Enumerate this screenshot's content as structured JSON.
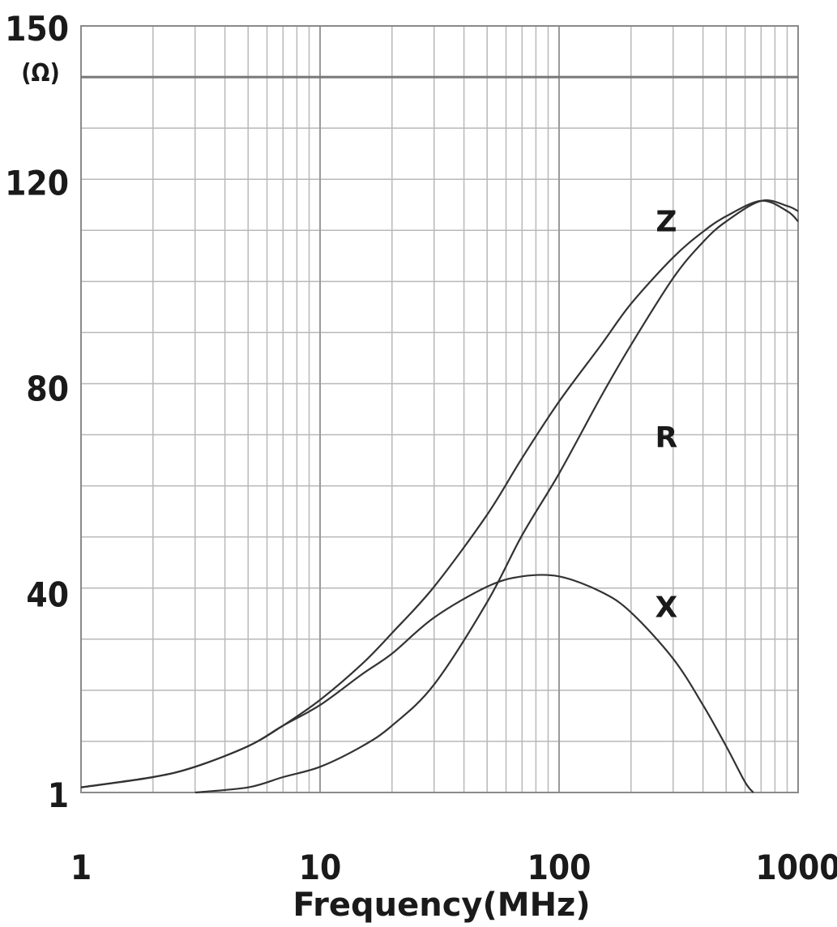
{
  "chart_data": {
    "type": "line",
    "xlabel": "Frequency(MHz)",
    "ylabel": "(Ω)",
    "xscale": "log",
    "xlim": [
      1,
      1000
    ],
    "ylim": [
      1,
      150
    ],
    "grid": true,
    "legend": "none",
    "x_ticks": [
      "1",
      "10",
      "100",
      "1000"
    ],
    "y_ticks": [
      "1",
      "40",
      "80",
      "120",
      "150"
    ],
    "line_color": "#333333",
    "grid_color": "#b8b8b8",
    "series": [
      {
        "name": "Z",
        "x": [
          1,
          2,
          3,
          5,
          7,
          10,
          15,
          20,
          30,
          50,
          70,
          100,
          150,
          200,
          300,
          400,
          500,
          700,
          900,
          1000
        ],
        "y": [
          2,
          4,
          6,
          10,
          14,
          19,
          26,
          32,
          41,
          55,
          66,
          77,
          88,
          96,
          105,
          110,
          113,
          116,
          114,
          112
        ]
      },
      {
        "name": "R",
        "x": [
          3,
          5,
          7,
          10,
          15,
          20,
          30,
          50,
          70,
          100,
          150,
          200,
          300,
          400,
          500,
          700,
          900,
          1000
        ],
        "y": [
          1,
          2,
          4,
          6,
          10,
          14,
          22,
          38,
          51,
          63,
          78,
          88,
          101,
          108,
          112,
          116,
          115,
          114
        ]
      },
      {
        "name": "X",
        "x": [
          1,
          2,
          3,
          5,
          7,
          10,
          15,
          20,
          30,
          50,
          70,
          100,
          150,
          200,
          300,
          400,
          500,
          600,
          650
        ],
        "y": [
          2,
          4,
          6,
          10,
          14,
          18,
          24,
          28,
          35,
          41,
          43,
          43,
          40,
          36,
          27,
          18,
          10,
          3,
          1
        ]
      }
    ],
    "curve_labels": [
      "Z",
      "R",
      "X"
    ]
  }
}
